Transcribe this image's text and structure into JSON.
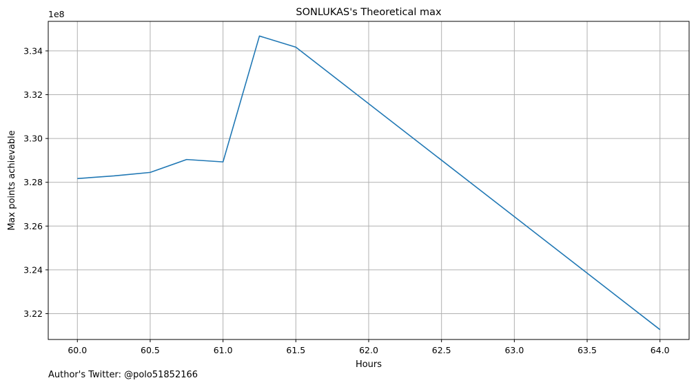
{
  "chart_data": {
    "type": "line",
    "title": "SONLUKAS's Theoretical max",
    "xlabel": "Hours",
    "ylabel": "Max points achievable",
    "y_offset_label": "1e8",
    "xlim": [
      59.8,
      64.2
    ],
    "ylim": [
      3.2082,
      3.3535
    ],
    "x_ticks": [
      60.0,
      60.5,
      61.0,
      61.5,
      62.0,
      62.5,
      63.0,
      63.5,
      64.0
    ],
    "x_tick_labels": [
      "60.0",
      "60.5",
      "61.0",
      "61.5",
      "62.0",
      "62.5",
      "63.0",
      "63.5",
      "64.0"
    ],
    "y_ticks": [
      3.22,
      3.24,
      3.26,
      3.28,
      3.3,
      3.32,
      3.34
    ],
    "y_tick_labels": [
      "3.22",
      "3.24",
      "3.26",
      "3.28",
      "3.30",
      "3.32",
      "3.34"
    ],
    "grid": true,
    "series": [
      {
        "color": "#1f77b4",
        "x": [
          60.0,
          60.25,
          60.5,
          60.75,
          61.0,
          61.25,
          61.5,
          64.0
        ],
        "y": [
          3.2817,
          3.2829,
          3.2845,
          3.2904,
          3.2893,
          3.3468,
          3.3417,
          3.2127
        ]
      }
    ]
  },
  "footer": {
    "text": "Author's Twitter: @polo51852166"
  }
}
